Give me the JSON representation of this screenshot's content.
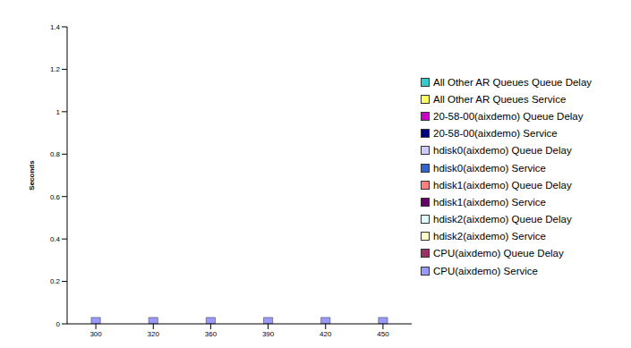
{
  "chart_data": {
    "type": "bar",
    "y_label": "Seconds",
    "categories": [
      "300",
      "320",
      "360",
      "390",
      "420",
      "450"
    ],
    "series": [
      {
        "name": "CPU(aixdemo) Service",
        "color": "#9999FF",
        "values": [
          0.03,
          0.03,
          0.03,
          0.03,
          0.03,
          0.03
        ]
      },
      {
        "name": "CPU(aixdemo) Queue Delay",
        "color": "#993366",
        "values": [
          0,
          0,
          0,
          0,
          0,
          0
        ]
      },
      {
        "name": "hdisk2(aixdemo) Service",
        "color": "#FFFFCC",
        "values": [
          0,
          0,
          0,
          0,
          0,
          0
        ]
      },
      {
        "name": "hdisk2(aixdemo) Queue Delay",
        "color": "#E0FFFF",
        "values": [
          0,
          0,
          0,
          0,
          0,
          0
        ]
      },
      {
        "name": "hdisk1(aixdemo) Service",
        "color": "#660066",
        "values": [
          0,
          0,
          0,
          0,
          0,
          0
        ]
      },
      {
        "name": "hdisk1(aixdemo) Queue Delay",
        "color": "#FF8080",
        "values": [
          0,
          0,
          0,
          0,
          0,
          0
        ]
      },
      {
        "name": "hdisk0(aixdemo) Service",
        "color": "#3366CC",
        "values": [
          0,
          0,
          0,
          0,
          0,
          0
        ]
      },
      {
        "name": "hdisk0(aixdemo) Queue Delay",
        "color": "#CCCCFF",
        "values": [
          0,
          0,
          0,
          0,
          0,
          0
        ]
      },
      {
        "name": "20-58-00(aixdemo) Service",
        "color": "#000080",
        "values": [
          0,
          0,
          0,
          0,
          0,
          0
        ]
      },
      {
        "name": "20-58-00(aixdemo) Queue Delay",
        "color": "#CC00CC",
        "values": [
          0,
          0,
          0,
          0,
          0,
          0
        ]
      },
      {
        "name": "All Other AR Queues Service",
        "color": "#FFFF66",
        "values": [
          0,
          0,
          0,
          0,
          0,
          0
        ]
      },
      {
        "name": "All Other AR Queues Queue Delay",
        "color": "#33CCCC",
        "values": [
          0,
          0,
          0,
          0,
          0,
          0
        ]
      }
    ],
    "ylim": [
      0,
      1.4
    ],
    "yticks": [
      0,
      0.2,
      0.4,
      0.6,
      0.8,
      1,
      1.2,
      1.4
    ],
    "grid": false,
    "stacked": true,
    "legend": "right"
  }
}
